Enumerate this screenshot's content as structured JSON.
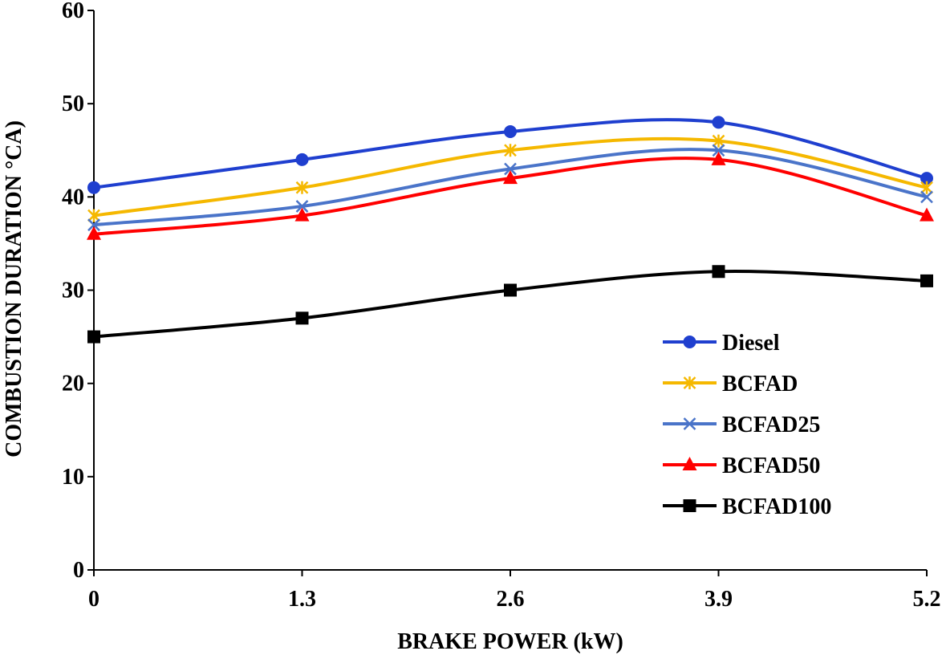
{
  "chart_data": {
    "type": "line",
    "smooth": true,
    "title": "",
    "xlabel": "BRAKE POWER (kW)",
    "ylabel": "COMBUSTION DURATION °CA)",
    "x": [
      0,
      1.3,
      2.6,
      3.9,
      5.2
    ],
    "x_tick_labels": [
      "0",
      "1.3",
      "2.6",
      "3.9",
      "5.2"
    ],
    "xlim": [
      0,
      5.2
    ],
    "ylim": [
      0,
      60
    ],
    "y_ticks": [
      0,
      10,
      20,
      30,
      40,
      50,
      60
    ],
    "grid": false,
    "legend_position": "right",
    "series": [
      {
        "name": "Diesel",
        "marker": "circle",
        "color": "#1f3fcf",
        "values": [
          41,
          44,
          47,
          48,
          42
        ]
      },
      {
        "name": "BCFAD",
        "marker": "star",
        "color": "#f5b800",
        "values": [
          38,
          41,
          45,
          46,
          41
        ]
      },
      {
        "name": "BCFAD25",
        "marker": "x",
        "color": "#4a74c9",
        "values": [
          37,
          39,
          43,
          45,
          40
        ]
      },
      {
        "name": "BCFAD50",
        "marker": "triangle",
        "color": "#ff0000",
        "values": [
          36,
          38,
          42,
          44,
          38
        ]
      },
      {
        "name": "BCFAD100",
        "marker": "square",
        "color": "#000000",
        "values": [
          25,
          27,
          30,
          32,
          31
        ]
      }
    ]
  }
}
